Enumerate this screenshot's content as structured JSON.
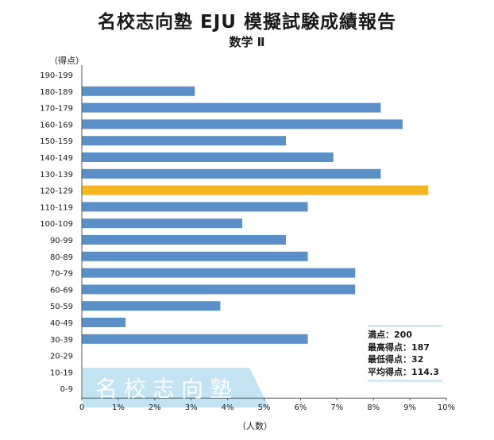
{
  "header": {
    "title": "名校志向塾 EJU 模擬試験成績報告",
    "subtitle": "数学 Ⅱ"
  },
  "chart_data": {
    "type": "bar",
    "orientation": "horizontal",
    "ylabel": "（得点）",
    "xlabel": "（人数）",
    "categories": [
      "190-199",
      "180-189",
      "170-179",
      "160-169",
      "150-159",
      "140-149",
      "130-139",
      "120-129",
      "110-119",
      "100-109",
      "90-99",
      "80-89",
      "70-79",
      "60-69",
      "50-59",
      "40-49",
      "30-39",
      "20-29",
      "10-19",
      "0-9"
    ],
    "values": [
      0,
      3.1,
      8.2,
      8.8,
      5.6,
      6.9,
      8.2,
      9.5,
      6.2,
      4.4,
      5.6,
      6.2,
      7.5,
      7.5,
      3.8,
      1.2,
      6.2,
      0,
      0,
      0
    ],
    "xlim": [
      0,
      10
    ],
    "x_ticks": [
      "0",
      "1%",
      "2%",
      "3%",
      "4%",
      "5%",
      "6%",
      "7%",
      "8%",
      "9%",
      "10%"
    ],
    "highlight_category": "120-129",
    "bar_color": "#5b8fc7",
    "highlight_color": "#f6b624",
    "grid": false
  },
  "stats": {
    "full_score": "満点：200",
    "max_score": "最高得点：187",
    "min_score": "最低得点：32",
    "average": "平均得点：114.3"
  },
  "watermark": {
    "text": "名校志向塾",
    "color": "#c3e3f3"
  }
}
